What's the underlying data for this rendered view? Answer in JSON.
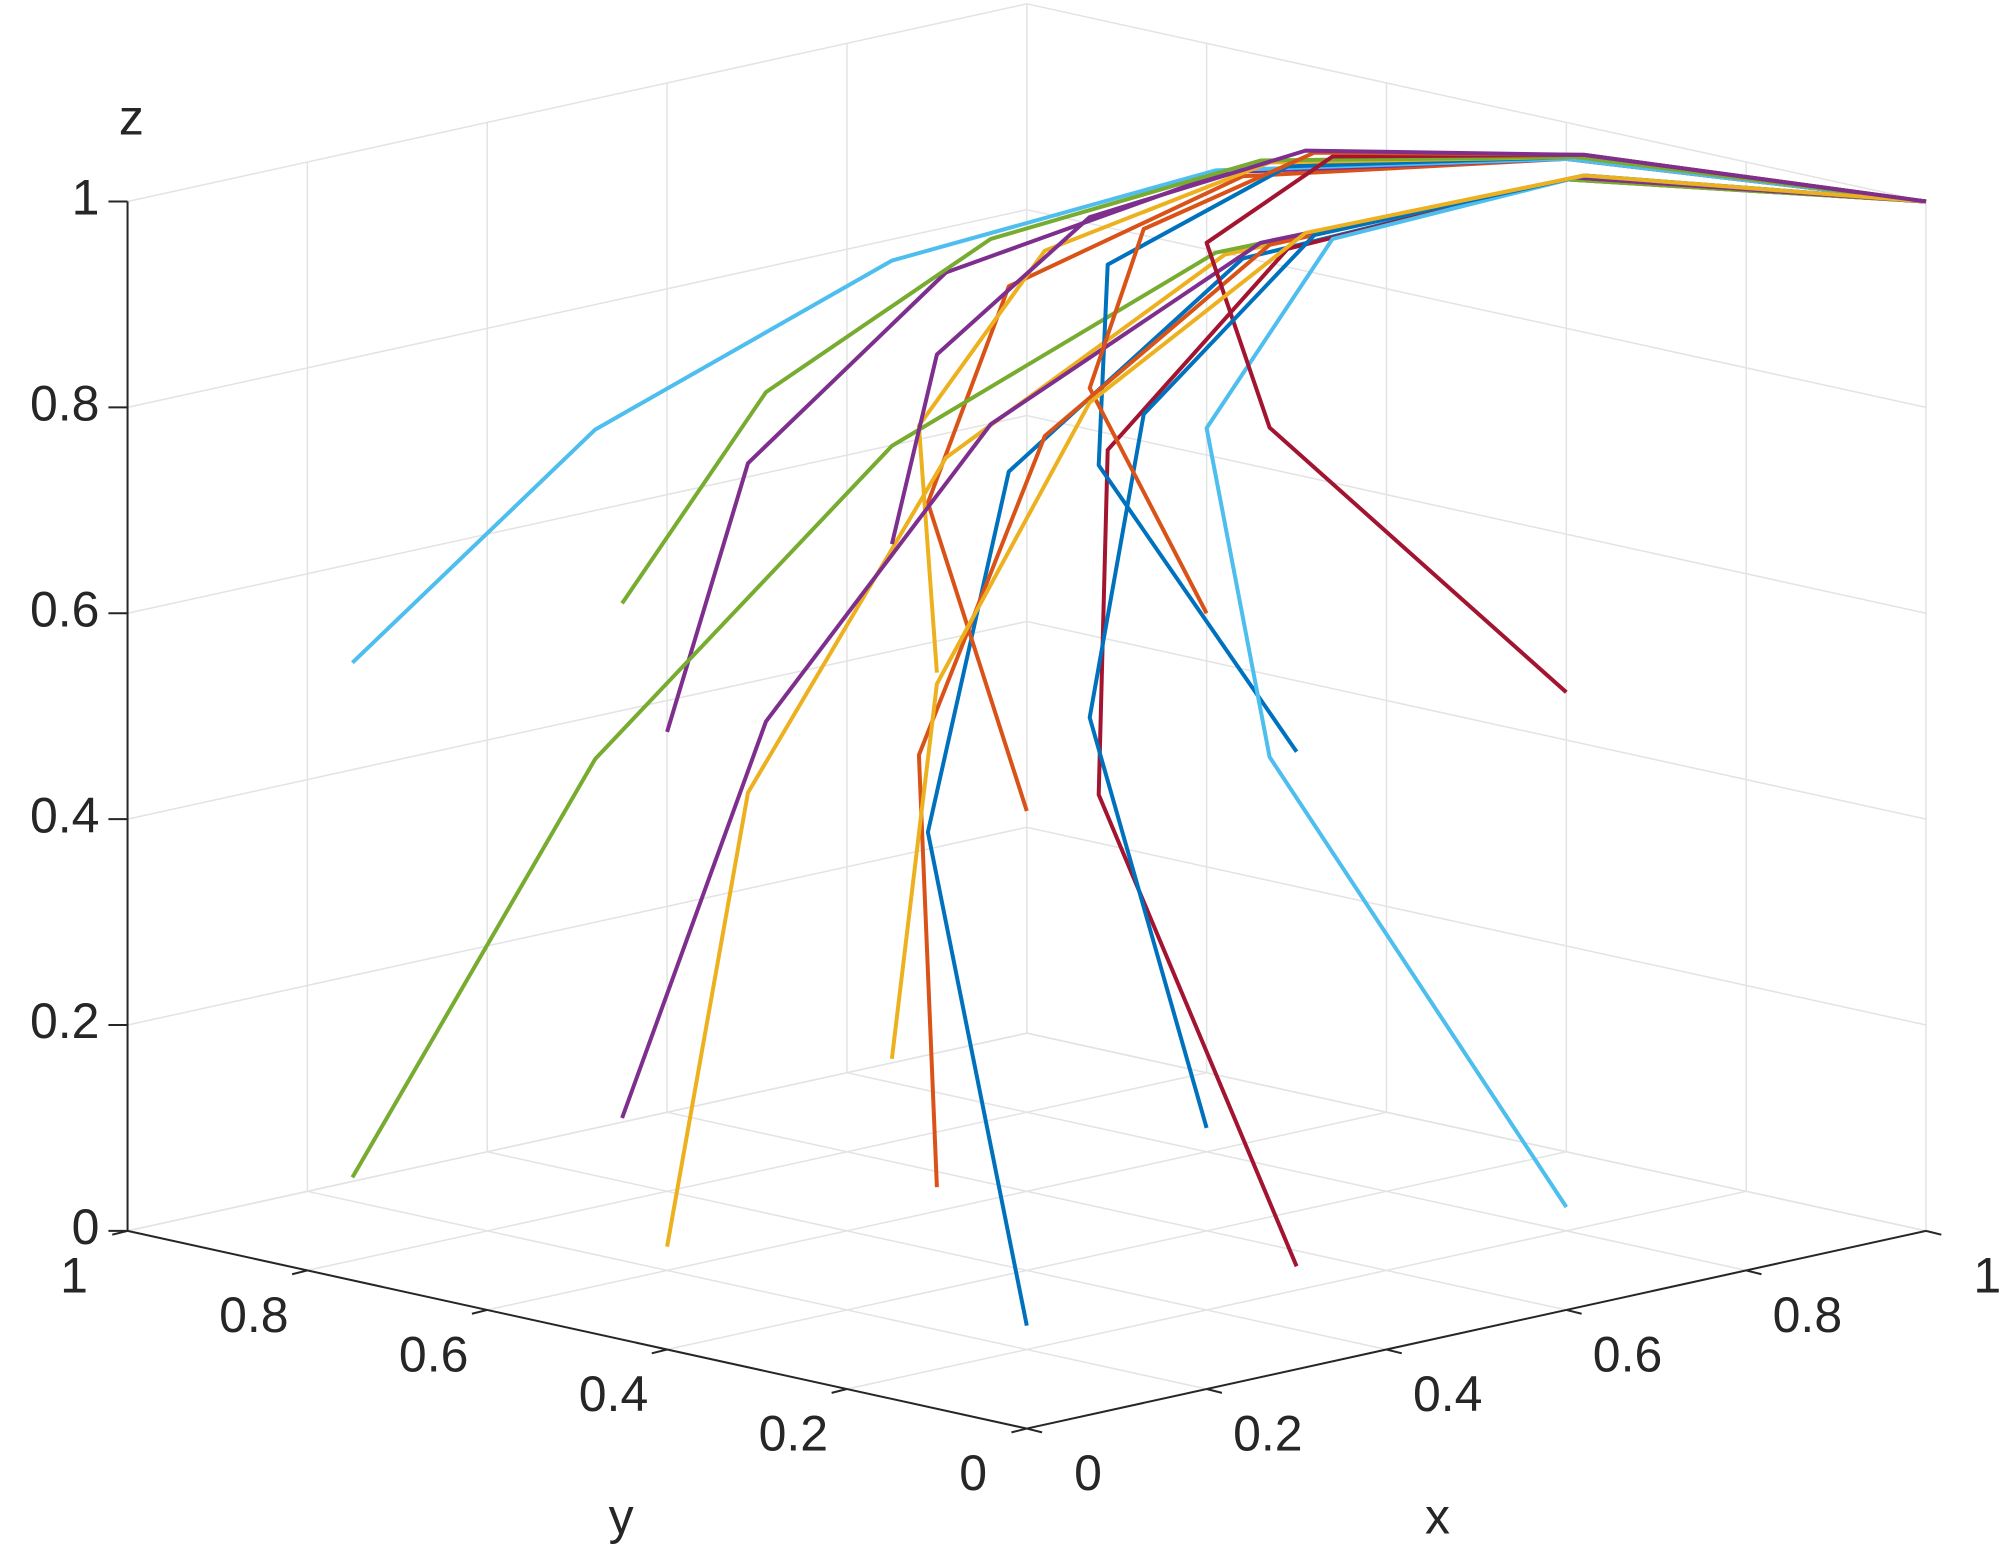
{
  "chart_data": {
    "type": "line3d",
    "xlabel": "x",
    "ylabel": "y",
    "zlabel": "z",
    "xlim": [
      0,
      1
    ],
    "ylim": [
      0,
      1
    ],
    "zlim": [
      0,
      1
    ],
    "xticks": [
      0,
      0.2,
      0.4,
      0.6,
      0.8,
      1
    ],
    "yticks": [
      0,
      0.2,
      0.4,
      0.6,
      0.8,
      1
    ],
    "zticks": [
      0,
      0.2,
      0.4,
      0.6,
      0.8,
      1
    ],
    "grid": true,
    "series": [
      {
        "color": "#0072BD",
        "x": [
          0,
          0.36,
          0.64,
          0.84,
          0.96,
          1
        ],
        "y": [
          0,
          0.47,
          0.66,
          0.6,
          0.36,
          0
        ],
        "z": [
          0.1,
          0.42,
          0.68,
          0.86,
          0.96,
          1
        ]
      },
      {
        "color": "#D95319",
        "x": [
          0,
          0.36,
          0.64,
          0.84,
          0.96,
          1
        ],
        "y": [
          0,
          0.47,
          0.66,
          0.6,
          0.36,
          0
        ],
        "z": [
          0.6,
          0.74,
          0.86,
          0.94,
          0.98,
          1
        ]
      },
      {
        "color": "#EDB120",
        "x": [
          0,
          0.36,
          0.64,
          0.84,
          0.96,
          1
        ],
        "y": [
          0.4,
          0.67,
          0.73,
          0.62,
          0.36,
          0
        ],
        "z": [
          0.1,
          0.42,
          0.68,
          0.86,
          0.96,
          1
        ]
      },
      {
        "color": "#7E2F8E",
        "x": [
          0,
          0.36,
          0.64,
          0.84,
          0.96,
          1
        ],
        "y": [
          0.4,
          0.67,
          0.73,
          0.62,
          0.36,
          0
        ],
        "z": [
          0.6,
          0.74,
          0.86,
          0.94,
          0.98,
          1
        ]
      },
      {
        "color": "#77AC30",
        "x": [
          0,
          0.36,
          0.64,
          0.84,
          0.96,
          1
        ],
        "y": [
          0.75,
          0.84,
          0.79,
          0.63,
          0.36,
          0
        ],
        "z": [
          0.1,
          0.42,
          0.68,
          0.86,
          0.96,
          1
        ]
      },
      {
        "color": "#4DBEEE",
        "x": [
          0,
          0.36,
          0.64,
          0.84,
          0.96,
          1
        ],
        "y": [
          0.75,
          0.84,
          0.79,
          0.63,
          0.36,
          0
        ],
        "z": [
          0.6,
          0.74,
          0.86,
          0.94,
          0.98,
          1
        ]
      },
      {
        "color": "#A2142F",
        "x": [
          0.3,
          0.55,
          0.75,
          0.89,
          0.97,
          1
        ],
        "y": [
          0,
          0.47,
          0.66,
          0.6,
          0.36,
          0
        ],
        "z": [
          0.1,
          0.42,
          0.68,
          0.86,
          0.96,
          1
        ]
      },
      {
        "color": "#0072BD",
        "x": [
          0.3,
          0.55,
          0.75,
          0.89,
          0.97,
          1
        ],
        "y": [
          0,
          0.47,
          0.66,
          0.6,
          0.36,
          0
        ],
        "z": [
          0.6,
          0.74,
          0.86,
          0.94,
          0.98,
          1
        ]
      },
      {
        "color": "#D95319",
        "x": [
          0.3,
          0.55,
          0.75,
          0.89,
          0.97,
          1
        ],
        "y": [
          0.4,
          0.67,
          0.73,
          0.62,
          0.36,
          0
        ],
        "z": [
          0.1,
          0.42,
          0.68,
          0.86,
          0.96,
          1
        ]
      },
      {
        "color": "#EDB120",
        "x": [
          0.3,
          0.55,
          0.75,
          0.89,
          0.97,
          1
        ],
        "y": [
          0.4,
          0.67,
          0.73,
          0.62,
          0.36,
          0
        ],
        "z": [
          0.6,
          0.74,
          0.86,
          0.94,
          0.98,
          1
        ]
      },
      {
        "color": "#7E2F8E",
        "x": [
          0.3,
          0.55,
          0.75,
          0.89,
          0.97,
          1
        ],
        "y": [
          0.75,
          0.84,
          0.79,
          0.63,
          0.36,
          0
        ],
        "z": [
          0.1,
          0.42,
          0.68,
          0.86,
          0.96,
          1
        ]
      },
      {
        "color": "#77AC30",
        "x": [
          0.3,
          0.55,
          0.75,
          0.89,
          0.97,
          1
        ],
        "y": [
          0.75,
          0.84,
          0.79,
          0.63,
          0.36,
          0
        ],
        "z": [
          0.6,
          0.74,
          0.86,
          0.94,
          0.98,
          1
        ]
      },
      {
        "color": "#4DBEEE",
        "x": [
          0.6,
          0.74,
          0.86,
          0.94,
          0.98,
          1
        ],
        "y": [
          0,
          0.47,
          0.66,
          0.6,
          0.36,
          0
        ],
        "z": [
          0.1,
          0.42,
          0.68,
          0.86,
          0.96,
          1
        ]
      },
      {
        "color": "#A2142F",
        "x": [
          0.6,
          0.74,
          0.86,
          0.94,
          0.98,
          1
        ],
        "y": [
          0,
          0.47,
          0.66,
          0.6,
          0.36,
          0
        ],
        "z": [
          0.6,
          0.74,
          0.86,
          0.94,
          0.98,
          1
        ]
      },
      {
        "color": "#0072BD",
        "x": [
          0.6,
          0.74,
          0.86,
          0.94,
          0.98,
          1
        ],
        "y": [
          0.4,
          0.67,
          0.73,
          0.62,
          0.36,
          0
        ],
        "z": [
          0.1,
          0.42,
          0.68,
          0.86,
          0.96,
          1
        ]
      },
      {
        "color": "#D95319",
        "x": [
          0.6,
          0.74,
          0.86,
          0.94,
          0.98,
          1
        ],
        "y": [
          0.4,
          0.67,
          0.73,
          0.62,
          0.36,
          0
        ],
        "z": [
          0.6,
          0.74,
          0.86,
          0.94,
          0.98,
          1
        ]
      },
      {
        "color": "#EDB120",
        "x": [
          0.6,
          0.74,
          0.86,
          0.94,
          0.98,
          1
        ],
        "y": [
          0.75,
          0.84,
          0.79,
          0.63,
          0.36,
          0
        ],
        "z": [
          0.1,
          0.42,
          0.68,
          0.86,
          0.96,
          1
        ]
      },
      {
        "color": "#7E2F8E",
        "x": [
          0.6,
          0.74,
          0.86,
          0.94,
          0.98,
          1
        ],
        "y": [
          0.75,
          0.84,
          0.79,
          0.63,
          0.36,
          0
        ],
        "z": [
          0.6,
          0.74,
          0.86,
          0.94,
          0.98,
          1
        ]
      }
    ]
  }
}
